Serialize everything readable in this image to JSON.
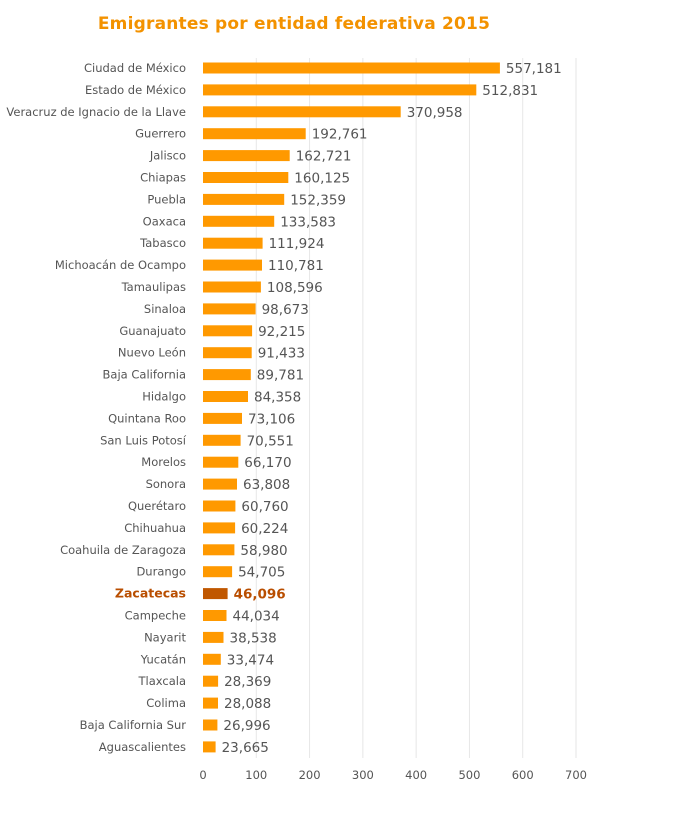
{
  "chart_data": {
    "type": "bar",
    "orientation": "horizontal",
    "title": "Emigrantes por entidad federativa 2015",
    "categories": [
      "Ciudad de México",
      "Estado de México",
      "Veracruz de Ignacio de la Llave",
      "Guerrero",
      "Jalisco",
      "Chiapas",
      "Puebla",
      "Oaxaca",
      "Tabasco",
      "Michoacán de Ocampo",
      "Tamaulipas",
      "Sinaloa",
      "Guanajuato",
      "Nuevo León",
      "Baja California",
      "Hidalgo",
      "Quintana Roo",
      "San Luis Potosí",
      "Morelos",
      "Sonora",
      "Querétaro",
      "Chihuahua",
      "Coahuila de Zaragoza",
      "Durango",
      "Zacatecas",
      "Campeche",
      "Nayarit",
      "Yucatán",
      "Tlaxcala",
      "Colima",
      "Baja California Sur",
      "Aguascalientes"
    ],
    "values": [
      557181,
      512831,
      370958,
      192761,
      162721,
      160125,
      152359,
      133583,
      111924,
      110781,
      108596,
      98673,
      92215,
      91433,
      89781,
      84358,
      73106,
      70551,
      66170,
      63808,
      60760,
      60224,
      58980,
      54705,
      46096,
      44034,
      38538,
      33474,
      28369,
      28088,
      26996,
      23665
    ],
    "value_labels": [
      "557,181",
      "512,831",
      "370,958",
      "192,761",
      "162,721",
      "160,125",
      "152,359",
      "133,583",
      "111,924",
      "110,781",
      "108,596",
      "98,673",
      "92,215",
      "91,433",
      "89,781",
      "84,358",
      "73,106",
      "70,551",
      "66,170",
      "63,808",
      "60,760",
      "60,224",
      "58,980",
      "54,705",
      "46,096",
      "44,034",
      "38,538",
      "33,474",
      "28,369",
      "28,088",
      "26,996",
      "23,665"
    ],
    "highlight_category": "Zacatecas",
    "x_ticks": [
      "0",
      "100",
      "200",
      "300",
      "400",
      "500",
      "600",
      "700"
    ],
    "x_tick_values": [
      0,
      100000,
      200000,
      300000,
      400000,
      500000,
      600000,
      700000
    ],
    "xlim": [
      0,
      700000
    ],
    "xlabel": "",
    "ylabel": "",
    "grid": "vertical",
    "colors": {
      "bar": "#ff9900",
      "highlight_bar": "#c05700",
      "highlight_text": "#b94e00",
      "title": "#f39200"
    }
  }
}
